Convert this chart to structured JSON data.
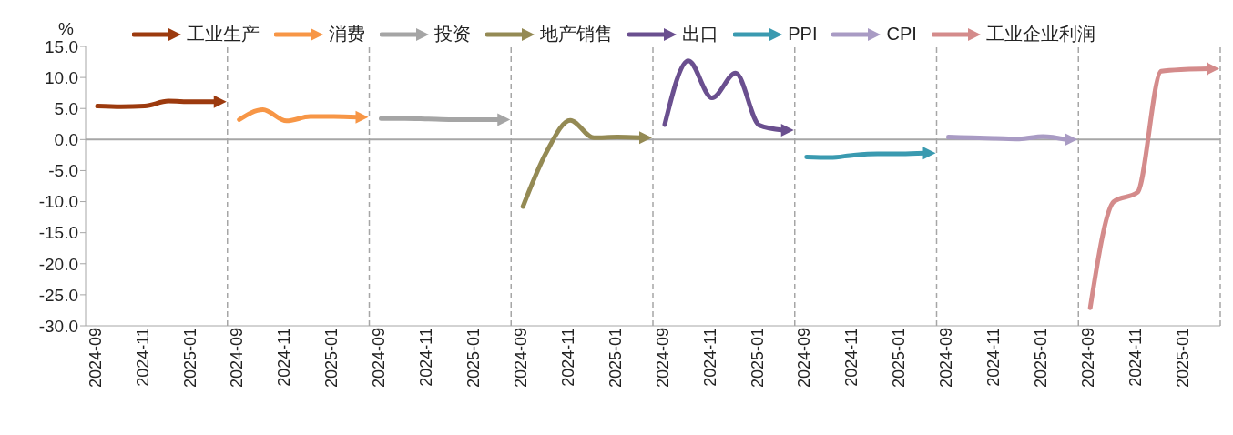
{
  "chart_data": {
    "type": "line",
    "ylabel": "%",
    "categories": [
      "2024-09",
      null,
      "2024-11",
      null,
      "2025-01",
      null,
      "2024-09",
      null,
      "2024-11",
      null,
      "2025-01",
      null,
      "2024-09",
      null,
      "2024-11",
      null,
      "2025-01",
      null,
      "2024-09",
      null,
      "2024-11",
      null,
      "2025-01",
      null,
      "2024-09",
      null,
      "2024-11",
      null,
      "2025-01",
      null,
      "2024-09",
      null,
      "2024-11",
      null,
      "2025-01",
      null,
      "2024-09",
      null,
      "2024-11",
      null,
      "2025-01",
      null,
      "2024-09",
      null,
      "2024-11",
      null,
      "2025-01",
      null
    ],
    "series": [
      {
        "name": "工业生产",
        "color": "#9c3a0e",
        "values": [
          5.4,
          5.3,
          5.4,
          6.2,
          6.1,
          6.1,
          null,
          null,
          null,
          null,
          null,
          null,
          null,
          null,
          null,
          null,
          null,
          null,
          null,
          null,
          null,
          null,
          null,
          null,
          null,
          null,
          null,
          null,
          null,
          null,
          null,
          null,
          null,
          null,
          null,
          null,
          null,
          null,
          null,
          null,
          null,
          null,
          null,
          null,
          null,
          null,
          null,
          null
        ]
      },
      {
        "name": "消费",
        "color": "#f79646",
        "values": [
          null,
          null,
          null,
          null,
          null,
          null,
          3.2,
          4.8,
          3.0,
          3.7,
          3.7,
          3.6,
          null,
          null,
          null,
          null,
          null,
          null,
          null,
          null,
          null,
          null,
          null,
          null,
          null,
          null,
          null,
          null,
          null,
          null,
          null,
          null,
          null,
          null,
          null,
          null,
          null,
          null,
          null,
          null,
          null,
          null,
          null,
          null,
          null,
          null,
          null,
          null
        ]
      },
      {
        "name": "投资",
        "color": "#a5a5a5",
        "values": [
          null,
          null,
          null,
          null,
          null,
          null,
          null,
          null,
          null,
          null,
          null,
          null,
          3.4,
          3.4,
          3.3,
          3.2,
          3.2,
          3.2,
          null,
          null,
          null,
          null,
          null,
          null,
          null,
          null,
          null,
          null,
          null,
          null,
          null,
          null,
          null,
          null,
          null,
          null,
          null,
          null,
          null,
          null,
          null,
          null,
          null,
          null,
          null,
          null,
          null,
          null
        ]
      },
      {
        "name": "地产销售",
        "color": "#948a54",
        "values": [
          null,
          null,
          null,
          null,
          null,
          null,
          null,
          null,
          null,
          null,
          null,
          null,
          null,
          null,
          null,
          null,
          null,
          null,
          -10.8,
          -2.0,
          3.1,
          0.3,
          0.4,
          0.3,
          null,
          null,
          null,
          null,
          null,
          null,
          null,
          null,
          null,
          null,
          null,
          null,
          null,
          null,
          null,
          null,
          null,
          null,
          null,
          null,
          null,
          null,
          null,
          null
        ]
      },
      {
        "name": "出口",
        "color": "#6a4f8f",
        "values": [
          null,
          null,
          null,
          null,
          null,
          null,
          null,
          null,
          null,
          null,
          null,
          null,
          null,
          null,
          null,
          null,
          null,
          null,
          null,
          null,
          null,
          null,
          null,
          null,
          2.4,
          12.7,
          6.7,
          10.7,
          2.3,
          1.5,
          null,
          null,
          null,
          null,
          null,
          null,
          null,
          null,
          null,
          null,
          null,
          null,
          null,
          null,
          null,
          null,
          null,
          null
        ]
      },
      {
        "name": "PPI",
        "color": "#3a9ab0",
        "values": [
          null,
          null,
          null,
          null,
          null,
          null,
          null,
          null,
          null,
          null,
          null,
          null,
          null,
          null,
          null,
          null,
          null,
          null,
          null,
          null,
          null,
          null,
          null,
          null,
          null,
          null,
          null,
          null,
          null,
          null,
          -2.8,
          -2.9,
          -2.5,
          -2.3,
          -2.3,
          -2.2,
          null,
          null,
          null,
          null,
          null,
          null,
          null,
          null,
          null,
          null,
          null,
          null
        ]
      },
      {
        "name": "CPI",
        "color": "#a99bc4",
        "values": [
          null,
          null,
          null,
          null,
          null,
          null,
          null,
          null,
          null,
          null,
          null,
          null,
          null,
          null,
          null,
          null,
          null,
          null,
          null,
          null,
          null,
          null,
          null,
          null,
          null,
          null,
          null,
          null,
          null,
          null,
          null,
          null,
          null,
          null,
          null,
          null,
          0.4,
          0.3,
          0.2,
          0.1,
          0.5,
          0.0,
          null,
          null,
          null,
          null,
          null,
          null
        ]
      },
      {
        "name": "工业企业利润",
        "color": "#d48b8b",
        "values": [
          null,
          null,
          null,
          null,
          null,
          null,
          null,
          null,
          null,
          null,
          null,
          null,
          null,
          null,
          null,
          null,
          null,
          null,
          null,
          null,
          null,
          null,
          null,
          null,
          null,
          null,
          null,
          null,
          null,
          null,
          null,
          null,
          null,
          null,
          null,
          null,
          null,
          null,
          null,
          null,
          null,
          null,
          -27.1,
          -10.0,
          -8.5,
          11.0,
          11.3,
          11.4
        ]
      }
    ],
    "ylim": [
      -30,
      15
    ],
    "yticks": [
      {
        "value": -30,
        "label": "-30.0"
      },
      {
        "value": -25,
        "label": "-25.0"
      },
      {
        "value": -20,
        "label": "-20.0"
      },
      {
        "value": -15,
        "label": "-15.0"
      },
      {
        "value": -10,
        "label": "-10.0"
      },
      {
        "value": -5,
        "label": "-5.0"
      },
      {
        "value": 0,
        "label": "0.0"
      },
      {
        "value": 5,
        "label": "5.0"
      },
      {
        "value": 10,
        "label": "10.0"
      },
      {
        "value": 15,
        "label": "15.0"
      }
    ],
    "ref_lines": [
      {
        "axis": "y",
        "value": 0,
        "color": "#a6a6a6",
        "line_style": "solid"
      }
    ],
    "grid": false,
    "legend": "top",
    "marker": "none",
    "line_style": "solid"
  }
}
